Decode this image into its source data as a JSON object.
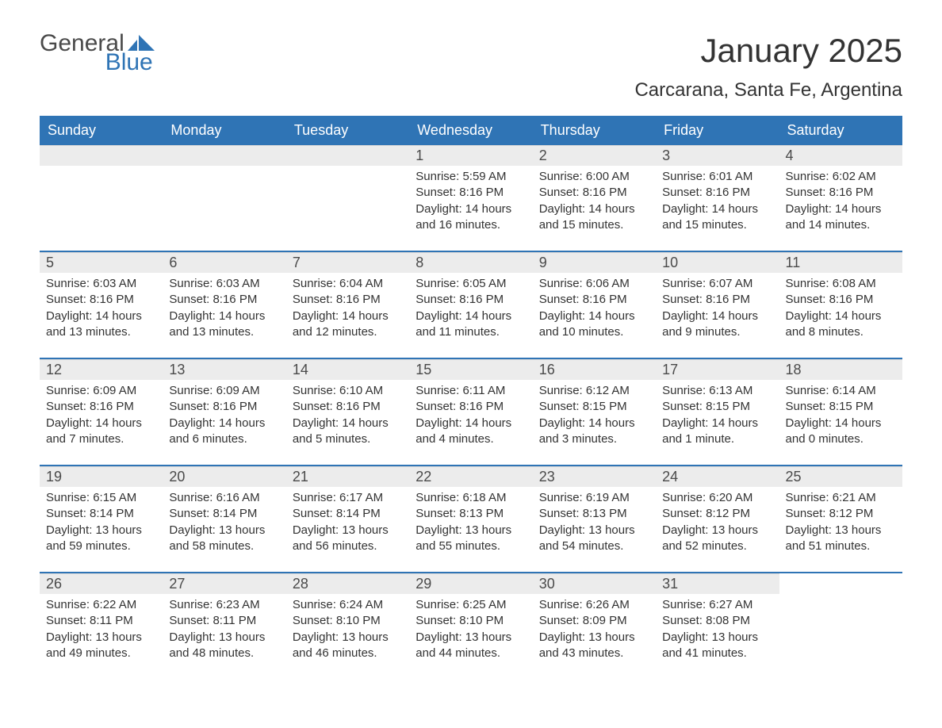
{
  "logo": {
    "word1": "General",
    "word2": "Blue",
    "brand_color": "#2f74b5"
  },
  "title": "January 2025",
  "subtitle": "Carcarana, Santa Fe, Argentina",
  "day_names": [
    "Sunday",
    "Monday",
    "Tuesday",
    "Wednesday",
    "Thursday",
    "Friday",
    "Saturday"
  ],
  "colors": {
    "header_bg": "#2f74b5",
    "header_text": "#ffffff",
    "daynum_bg": "#ececec",
    "body_bg": "#ffffff",
    "text": "#333333",
    "rule": "#2f74b5"
  },
  "typography": {
    "title_fontsize": 42,
    "subtitle_fontsize": 24,
    "dayheader_fontsize": 18,
    "daynum_fontsize": 18,
    "body_fontsize": 15
  },
  "layout": {
    "columns": 7,
    "rows": 5,
    "leading_blanks": 3
  },
  "sunrise_label": "Sunrise:",
  "sunset_label": "Sunset:",
  "daylight_label_prefix": "Daylight:",
  "days": [
    {
      "n": 1,
      "sunrise": "5:59 AM",
      "sunset": "8:16 PM",
      "daylight": "14 hours and 16 minutes."
    },
    {
      "n": 2,
      "sunrise": "6:00 AM",
      "sunset": "8:16 PM",
      "daylight": "14 hours and 15 minutes."
    },
    {
      "n": 3,
      "sunrise": "6:01 AM",
      "sunset": "8:16 PM",
      "daylight": "14 hours and 15 minutes."
    },
    {
      "n": 4,
      "sunrise": "6:02 AM",
      "sunset": "8:16 PM",
      "daylight": "14 hours and 14 minutes."
    },
    {
      "n": 5,
      "sunrise": "6:03 AM",
      "sunset": "8:16 PM",
      "daylight": "14 hours and 13 minutes."
    },
    {
      "n": 6,
      "sunrise": "6:03 AM",
      "sunset": "8:16 PM",
      "daylight": "14 hours and 13 minutes."
    },
    {
      "n": 7,
      "sunrise": "6:04 AM",
      "sunset": "8:16 PM",
      "daylight": "14 hours and 12 minutes."
    },
    {
      "n": 8,
      "sunrise": "6:05 AM",
      "sunset": "8:16 PM",
      "daylight": "14 hours and 11 minutes."
    },
    {
      "n": 9,
      "sunrise": "6:06 AM",
      "sunset": "8:16 PM",
      "daylight": "14 hours and 10 minutes."
    },
    {
      "n": 10,
      "sunrise": "6:07 AM",
      "sunset": "8:16 PM",
      "daylight": "14 hours and 9 minutes."
    },
    {
      "n": 11,
      "sunrise": "6:08 AM",
      "sunset": "8:16 PM",
      "daylight": "14 hours and 8 minutes."
    },
    {
      "n": 12,
      "sunrise": "6:09 AM",
      "sunset": "8:16 PM",
      "daylight": "14 hours and 7 minutes."
    },
    {
      "n": 13,
      "sunrise": "6:09 AM",
      "sunset": "8:16 PM",
      "daylight": "14 hours and 6 minutes."
    },
    {
      "n": 14,
      "sunrise": "6:10 AM",
      "sunset": "8:16 PM",
      "daylight": "14 hours and 5 minutes."
    },
    {
      "n": 15,
      "sunrise": "6:11 AM",
      "sunset": "8:16 PM",
      "daylight": "14 hours and 4 minutes."
    },
    {
      "n": 16,
      "sunrise": "6:12 AM",
      "sunset": "8:15 PM",
      "daylight": "14 hours and 3 minutes."
    },
    {
      "n": 17,
      "sunrise": "6:13 AM",
      "sunset": "8:15 PM",
      "daylight": "14 hours and 1 minute."
    },
    {
      "n": 18,
      "sunrise": "6:14 AM",
      "sunset": "8:15 PM",
      "daylight": "14 hours and 0 minutes."
    },
    {
      "n": 19,
      "sunrise": "6:15 AM",
      "sunset": "8:14 PM",
      "daylight": "13 hours and 59 minutes."
    },
    {
      "n": 20,
      "sunrise": "6:16 AM",
      "sunset": "8:14 PM",
      "daylight": "13 hours and 58 minutes."
    },
    {
      "n": 21,
      "sunrise": "6:17 AM",
      "sunset": "8:14 PM",
      "daylight": "13 hours and 56 minutes."
    },
    {
      "n": 22,
      "sunrise": "6:18 AM",
      "sunset": "8:13 PM",
      "daylight": "13 hours and 55 minutes."
    },
    {
      "n": 23,
      "sunrise": "6:19 AM",
      "sunset": "8:13 PM",
      "daylight": "13 hours and 54 minutes."
    },
    {
      "n": 24,
      "sunrise": "6:20 AM",
      "sunset": "8:12 PM",
      "daylight": "13 hours and 52 minutes."
    },
    {
      "n": 25,
      "sunrise": "6:21 AM",
      "sunset": "8:12 PM",
      "daylight": "13 hours and 51 minutes."
    },
    {
      "n": 26,
      "sunrise": "6:22 AM",
      "sunset": "8:11 PM",
      "daylight": "13 hours and 49 minutes."
    },
    {
      "n": 27,
      "sunrise": "6:23 AM",
      "sunset": "8:11 PM",
      "daylight": "13 hours and 48 minutes."
    },
    {
      "n": 28,
      "sunrise": "6:24 AM",
      "sunset": "8:10 PM",
      "daylight": "13 hours and 46 minutes."
    },
    {
      "n": 29,
      "sunrise": "6:25 AM",
      "sunset": "8:10 PM",
      "daylight": "13 hours and 44 minutes."
    },
    {
      "n": 30,
      "sunrise": "6:26 AM",
      "sunset": "8:09 PM",
      "daylight": "13 hours and 43 minutes."
    },
    {
      "n": 31,
      "sunrise": "6:27 AM",
      "sunset": "8:08 PM",
      "daylight": "13 hours and 41 minutes."
    }
  ]
}
